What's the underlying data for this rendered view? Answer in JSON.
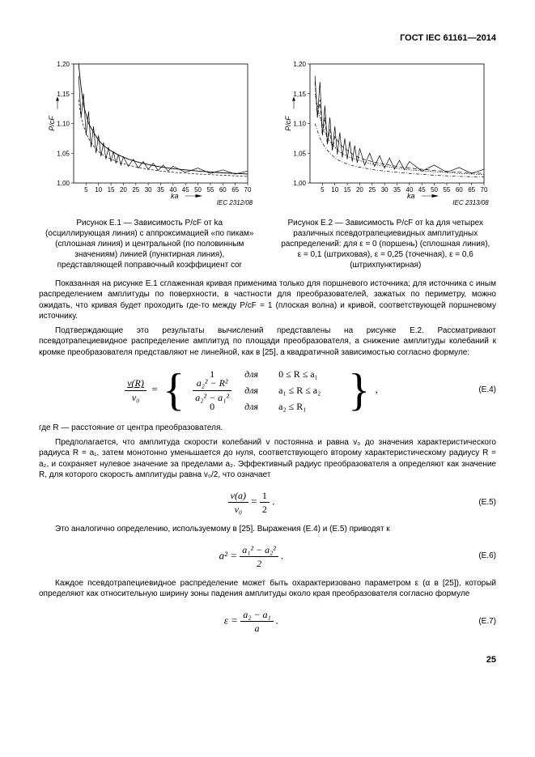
{
  "header": "ГОСТ IEC 61161—2014",
  "pageNumber": "25",
  "iecLeft": "IEC   2312/08",
  "iecRight": "IEC   2313/08",
  "chart1": {
    "ylabel": "P/cF",
    "xlabel": "ka",
    "xlim": [
      0,
      70
    ],
    "ylim": [
      1.0,
      1.2
    ],
    "xticks": [
      5,
      10,
      15,
      20,
      25,
      30,
      35,
      40,
      45,
      50,
      55,
      60,
      65,
      70
    ],
    "xticklabels": [
      "5",
      "10",
      "15",
      "20",
      "25",
      "30",
      "35",
      "40",
      "45",
      "50",
      "55",
      "60",
      "65",
      "70"
    ],
    "yticks": [
      1.0,
      1.05,
      1.1,
      1.15,
      1.2
    ],
    "yticklabels": [
      "1,00",
      "1,05",
      "1,10",
      "1,15",
      "1,20"
    ],
    "series": {
      "osc": {
        "color": "#000",
        "width": 0.7,
        "dash": "",
        "points": [
          [
            2,
            1.18
          ],
          [
            3,
            1.11
          ],
          [
            4,
            1.15
          ],
          [
            5,
            1.08
          ],
          [
            6,
            1.12
          ],
          [
            7,
            1.06
          ],
          [
            8,
            1.095
          ],
          [
            9,
            1.05
          ],
          [
            10,
            1.08
          ],
          [
            11,
            1.045
          ],
          [
            12,
            1.068
          ],
          [
            13,
            1.04
          ],
          [
            14,
            1.06
          ],
          [
            15,
            1.036
          ],
          [
            16,
            1.053
          ],
          [
            17,
            1.033
          ],
          [
            18,
            1.048
          ],
          [
            19,
            1.03
          ],
          [
            20,
            1.044
          ],
          [
            22,
            1.028
          ],
          [
            24,
            1.04
          ],
          [
            26,
            1.025
          ],
          [
            28,
            1.036
          ],
          [
            30,
            1.023
          ],
          [
            32,
            1.033
          ],
          [
            34,
            1.021
          ],
          [
            36,
            1.03
          ],
          [
            38,
            1.02
          ],
          [
            40,
            1.028
          ],
          [
            45,
            1.018
          ],
          [
            50,
            1.025
          ],
          [
            55,
            1.016
          ],
          [
            60,
            1.022
          ],
          [
            65,
            1.015
          ],
          [
            70,
            1.02
          ]
        ]
      },
      "peak": {
        "color": "#000",
        "width": 0.9,
        "dash": "",
        "points": [
          [
            2,
            1.2
          ],
          [
            3,
            1.16
          ],
          [
            4,
            1.13
          ],
          [
            6,
            1.1
          ],
          [
            8,
            1.085
          ],
          [
            10,
            1.072
          ],
          [
            12,
            1.063
          ],
          [
            15,
            1.054
          ],
          [
            18,
            1.047
          ],
          [
            22,
            1.04
          ],
          [
            26,
            1.035
          ],
          [
            30,
            1.031
          ],
          [
            35,
            1.027
          ],
          [
            40,
            1.024
          ],
          [
            50,
            1.02
          ],
          [
            60,
            1.017
          ],
          [
            70,
            1.015
          ]
        ]
      },
      "half": {
        "color": "#000",
        "width": 0.7,
        "dash": "3,2",
        "points": [
          [
            2,
            1.14
          ],
          [
            3,
            1.11
          ],
          [
            4,
            1.095
          ],
          [
            6,
            1.075
          ],
          [
            8,
            1.062
          ],
          [
            10,
            1.053
          ],
          [
            12,
            1.046
          ],
          [
            15,
            1.04
          ],
          [
            18,
            1.035
          ],
          [
            22,
            1.03
          ],
          [
            26,
            1.026
          ],
          [
            30,
            1.023
          ],
          [
            35,
            1.02
          ],
          [
            40,
            1.018
          ],
          [
            50,
            1.015
          ],
          [
            60,
            1.013
          ],
          [
            70,
            1.011
          ]
        ]
      }
    }
  },
  "chart2": {
    "ylabel": "P/cF",
    "xlabel": "ka",
    "xlim": [
      0,
      70
    ],
    "ylim": [
      1.0,
      1.2
    ],
    "xticks": [
      5,
      10,
      15,
      20,
      25,
      30,
      35,
      40,
      45,
      50,
      55,
      60,
      65,
      70
    ],
    "xticklabels": [
      "5",
      "10",
      "15",
      "20",
      "25",
      "30",
      "35",
      "40",
      "45",
      "50",
      "55",
      "60",
      "65",
      "70"
    ],
    "yticks": [
      1.0,
      1.05,
      1.1,
      1.15,
      1.2
    ],
    "yticklabels": [
      "1,00",
      "1,05",
      "1,10",
      "1,15",
      "1,20"
    ],
    "series": {
      "e0": {
        "color": "#000",
        "width": 0.7,
        "dash": "",
        "points": [
          [
            2,
            1.18
          ],
          [
            3,
            1.11
          ],
          [
            4,
            1.17
          ],
          [
            5,
            1.08
          ],
          [
            6,
            1.13
          ],
          [
            7,
            1.065
          ],
          [
            8,
            1.11
          ],
          [
            9,
            1.055
          ],
          [
            10,
            1.095
          ],
          [
            11,
            1.048
          ],
          [
            12,
            1.085
          ],
          [
            13,
            1.043
          ],
          [
            14,
            1.075
          ],
          [
            15,
            1.04
          ],
          [
            16,
            1.07
          ],
          [
            17,
            1.036
          ],
          [
            18,
            1.063
          ],
          [
            19,
            1.034
          ],
          [
            20,
            1.058
          ],
          [
            22,
            1.03
          ],
          [
            24,
            1.05
          ],
          [
            26,
            1.028
          ],
          [
            28,
            1.046
          ],
          [
            30,
            1.025
          ],
          [
            32,
            1.042
          ],
          [
            34,
            1.023
          ],
          [
            36,
            1.038
          ],
          [
            38,
            1.022
          ],
          [
            40,
            1.036
          ],
          [
            45,
            1.02
          ],
          [
            50,
            1.03
          ],
          [
            55,
            1.018
          ],
          [
            60,
            1.026
          ],
          [
            65,
            1.016
          ],
          [
            70,
            1.023
          ]
        ]
      },
      "e01": {
        "color": "#000",
        "width": 0.7,
        "dash": "5,3",
        "points": [
          [
            2,
            1.17
          ],
          [
            3,
            1.11
          ],
          [
            4,
            1.14
          ],
          [
            5,
            1.08
          ],
          [
            6,
            1.11
          ],
          [
            7,
            1.065
          ],
          [
            8,
            1.09
          ],
          [
            9,
            1.055
          ],
          [
            10,
            1.078
          ],
          [
            12,
            1.065
          ],
          [
            14,
            1.058
          ],
          [
            16,
            1.052
          ],
          [
            18,
            1.046
          ],
          [
            20,
            1.042
          ],
          [
            24,
            1.037
          ],
          [
            28,
            1.033
          ],
          [
            32,
            1.03
          ],
          [
            36,
            1.027
          ],
          [
            40,
            1.025
          ],
          [
            50,
            1.021
          ],
          [
            60,
            1.018
          ],
          [
            70,
            1.016
          ]
        ]
      },
      "e025": {
        "color": "#000",
        "width": 0.7,
        "dash": "1.5,1.5",
        "points": [
          [
            2,
            1.15
          ],
          [
            4,
            1.11
          ],
          [
            6,
            1.085
          ],
          [
            8,
            1.07
          ],
          [
            10,
            1.06
          ],
          [
            12,
            1.052
          ],
          [
            15,
            1.045
          ],
          [
            18,
            1.04
          ],
          [
            22,
            1.035
          ],
          [
            26,
            1.031
          ],
          [
            30,
            1.028
          ],
          [
            35,
            1.025
          ],
          [
            40,
            1.022
          ],
          [
            50,
            1.019
          ],
          [
            60,
            1.016
          ],
          [
            70,
            1.014
          ]
        ]
      },
      "e06": {
        "color": "#000",
        "width": 0.7,
        "dash": "4,2,1,2",
        "points": [
          [
            2,
            1.1
          ],
          [
            4,
            1.075
          ],
          [
            6,
            1.06
          ],
          [
            8,
            1.05
          ],
          [
            10,
            1.042
          ],
          [
            12,
            1.037
          ],
          [
            15,
            1.032
          ],
          [
            18,
            1.028
          ],
          [
            22,
            1.025
          ],
          [
            26,
            1.022
          ],
          [
            30,
            1.02
          ],
          [
            35,
            1.018
          ],
          [
            40,
            1.016
          ],
          [
            50,
            1.013
          ],
          [
            60,
            1.011
          ],
          [
            70,
            1.01
          ]
        ]
      }
    }
  },
  "caption1": "Рисунок Е.1 — Зависимость P/cF от ka (осциллирующая линия) с аппроксимацией «по пикам» (сплошная линия) и центральной (по половинным значениям) линией (пунктирная линия), представляющей поправочный коэффициент cor",
  "caption2": "Рисунок Е.2 — Зависимость P/cF от ka для четырех различных псевдотрапециевидных амплитудных распределений: для ε = 0 (поршень) (сплошная линия), ε = 0,1 (штриховая), ε = 0,25 (точечная), ε = 0,6 (штрихпунктирная)",
  "para1": "Показанная на рисунке Е.1 сглаженная кривая применима только для поршневого источника; для источника с иным распределением амплитуды по поверхности, в частности для преобразователей, зажатых по периметру, можно ожидать, что кривая будет проходить где-то между P/cF = 1 (плоская волна) и кривой, соответствующей поршневому источнику.",
  "para2": "Подтверждающие это результаты вычислений представлены на рисунке Е.2. Рассматривают псевдотрапециевидное распределение амплитуд по площади преобразователя, а снижение амплитуды колебаний к кромке преобразователя представляют не линейной, как в [25], а квадратичной зависимостью согласно формуле:",
  "para3": "где R — расстояние от центра преобразователя.",
  "para4": "Предполагается, что амплитуда скорости колебаний v постоянна и равна v₀ до значения характеристического радиуса R = a₁, затем монотонно уменьшается до нуля, соответствующего второму характеристическому радиусу R = a₂, и сохраняет нулевое значение за пределами a₂. Эффективный радиус преобразователя a определяют как значение R, для которого скорость амплитуды равна v₀/2, что означает",
  "para5": "Это аналогично определению, используемому в [25]. Выражения (Е.4) и (Е.5) приводят к",
  "para6": "Каждое псевдотрапециевидное распределение может быть охарактеризовано параметром ε (α в [25]), который определяют как относительную ширину зоны падения амплитуды около края преобразователя согласно формуле",
  "eq4num": "(Е.4)",
  "eq5num": "(Е.5)",
  "eq6num": "(Е.6)",
  "eq7num": "(Е.7)",
  "pw": {
    "r1c1": "1",
    "r1c2": "для",
    "r1c3": "0 ≤ R ≤ a₁",
    "r2c2": "для",
    "r2c3": "a₁ ≤ R ≤ a₂",
    "r3c1": "0",
    "r3c2": "для",
    "r3c3": "a₂ ≤ R₁"
  }
}
